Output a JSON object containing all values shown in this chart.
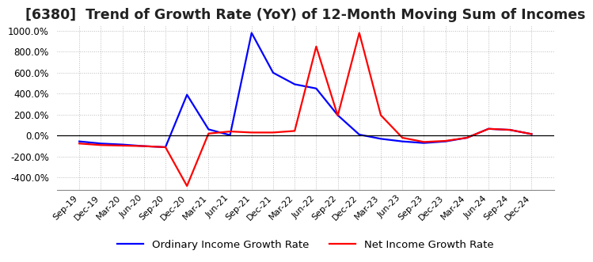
{
  "title": "[6380]  Trend of Growth Rate (YoY) of 12-Month Moving Sum of Incomes",
  "ylim": [
    -520,
    1050
  ],
  "yticks": [
    -400,
    -200,
    0,
    200,
    400,
    600,
    800,
    1000
  ],
  "legend_labels": [
    "Ordinary Income Growth Rate",
    "Net Income Growth Rate"
  ],
  "line_colors": [
    "blue",
    "red"
  ],
  "x_labels": [
    "Sep-19",
    "Dec-19",
    "Mar-20",
    "Jun-20",
    "Sep-20",
    "Dec-20",
    "Mar-21",
    "Jun-21",
    "Sep-21",
    "Dec-21",
    "Mar-22",
    "Jun-22",
    "Sep-22",
    "Dec-22",
    "Mar-23",
    "Jun-23",
    "Sep-23",
    "Dec-23",
    "Mar-24",
    "Jun-24",
    "Sep-24",
    "Dec-24"
  ],
  "ordinary_income_growth": [
    -55,
    -75,
    -85,
    -100,
    -110,
    390,
    60,
    5,
    980,
    600,
    490,
    450,
    195,
    10,
    -30,
    -55,
    -70,
    -55,
    -20,
    65,
    55,
    15
  ],
  "net_income_growth": [
    -75,
    -90,
    -95,
    -100,
    -110,
    -480,
    20,
    40,
    30,
    30,
    45,
    850,
    190,
    980,
    195,
    -20,
    -60,
    -50,
    -20,
    65,
    55,
    15
  ],
  "background_color": "#ffffff",
  "grid_color": "#bbbbbb",
  "title_fontsize": 12.5
}
